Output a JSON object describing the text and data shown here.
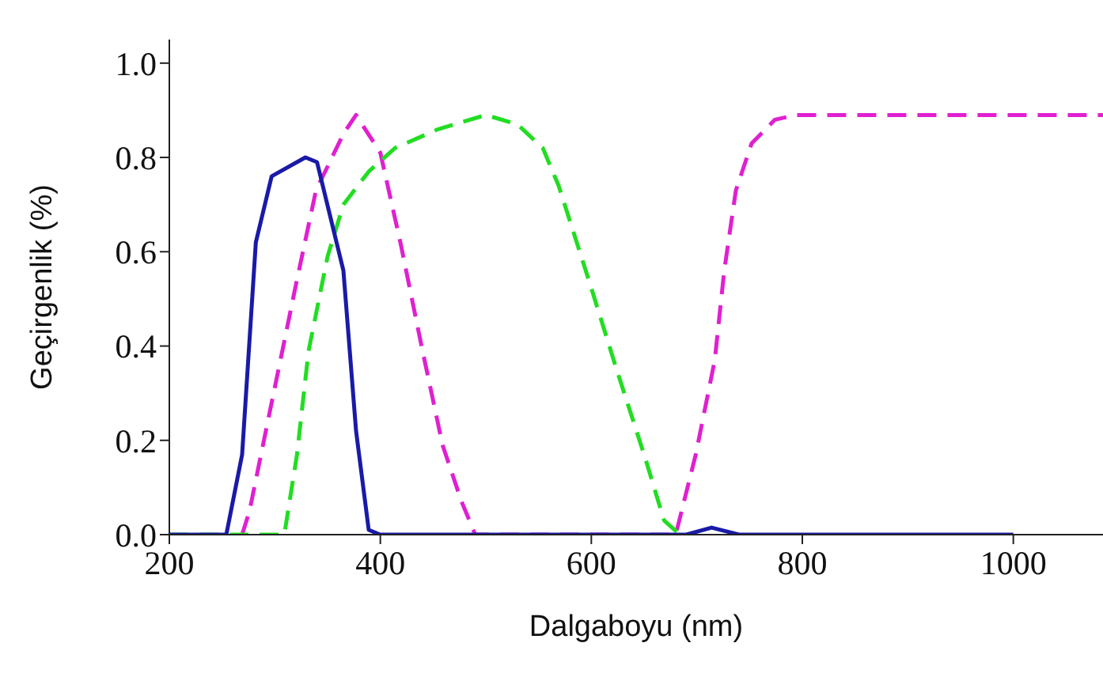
{
  "chart_data": {
    "type": "line",
    "xlabel": "Dalgaboyu (nm)",
    "ylabel": "Geçirgenlik (%)",
    "xlim": [
      200,
      1085
    ],
    "xticks": [
      200,
      400,
      600,
      800,
      1000
    ],
    "ylim": [
      0,
      1.05
    ],
    "yticks": [
      {
        "value": 0,
        "label": "0.0"
      },
      {
        "value": 0.2,
        "label": "0.2"
      },
      {
        "value": 0.4,
        "label": "0.4"
      },
      {
        "value": 0.6,
        "label": "0.6"
      },
      {
        "value": 0.8,
        "label": "0.8"
      },
      {
        "value": 1,
        "label": "1.0"
      }
    ],
    "grid": false,
    "legend": false,
    "marker": "none",
    "series": [
      {
        "color": "#e020d0",
        "line_style": "dashed",
        "x": [
          269,
          276,
          297,
          320,
          339,
          365,
          377,
          400,
          419,
          440,
          459,
          477,
          490,
          680,
          699,
          717,
          726,
          737,
          752,
          774,
          794,
          1085
        ],
        "values": [
          0,
          0.05,
          0.28,
          0.53,
          0.73,
          0.85,
          0.89,
          0.81,
          0.62,
          0.39,
          0.19,
          0.07,
          0,
          0,
          0.17,
          0.37,
          0.56,
          0.73,
          0.83,
          0.88,
          0.89,
          0.89
        ]
      },
      {
        "color": "#22dd22",
        "line_style": "dashed",
        "x": [
          200,
          309,
          321,
          332,
          350,
          365,
          389,
          414,
          455,
          500,
          530,
          554,
          569,
          599,
          624,
          650,
          669,
          684
        ],
        "values": [
          0,
          0,
          0.17,
          0.39,
          0.59,
          0.7,
          0.77,
          0.82,
          0.86,
          0.89,
          0.87,
          0.82,
          0.74,
          0.53,
          0.35,
          0.17,
          0.03,
          0
        ]
      },
      {
        "color": "#1a1aa8",
        "line_style": "solid",
        "x": [
          200,
          254,
          269,
          282,
          297,
          329,
          340,
          365,
          377,
          389,
          400,
          690,
          714,
          740,
          1000
        ],
        "values": [
          0,
          0,
          0.17,
          0.62,
          0.76,
          0.8,
          0.79,
          0.56,
          0.22,
          0.01,
          0,
          0,
          0.015,
          0,
          0
        ]
      }
    ]
  }
}
